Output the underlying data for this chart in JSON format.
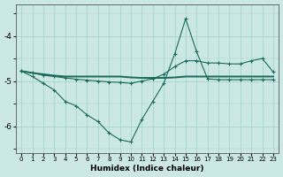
{
  "xlabel": "Humidex (Indice chaleur)",
  "bg_color": "#cce8e4",
  "grid_color": "#b0d8d2",
  "line_color": "#1a6b5a",
  "xlim": [
    -0.5,
    23.5
  ],
  "ylim": [
    -6.6,
    -3.3
  ],
  "yticks": [
    -6,
    -5,
    -4
  ],
  "xticks": [
    0,
    1,
    2,
    3,
    4,
    5,
    6,
    7,
    8,
    9,
    10,
    11,
    12,
    13,
    14,
    15,
    16,
    17,
    18,
    19,
    20,
    21,
    22,
    23
  ],
  "line1_x": [
    0,
    1,
    2,
    3,
    4,
    5,
    6,
    7,
    8,
    9,
    10,
    11,
    12,
    13,
    14,
    15,
    16,
    17,
    18,
    19,
    20,
    21,
    22,
    23
  ],
  "line1_y": [
    -4.78,
    -4.82,
    -4.87,
    -4.9,
    -4.93,
    -4.96,
    -4.98,
    -5.0,
    -5.02,
    -5.03,
    -5.05,
    -5.0,
    -4.95,
    -4.85,
    -4.68,
    -4.55,
    -4.55,
    -4.6,
    -4.6,
    -4.62,
    -4.62,
    -4.55,
    -4.5,
    -4.8
  ],
  "line2_x": [
    0,
    1,
    2,
    3,
    4,
    5,
    6,
    7,
    8,
    9,
    10,
    11,
    12,
    13,
    14,
    15,
    16,
    17,
    18,
    19,
    20,
    21,
    22,
    23
  ],
  "line2_y": [
    -4.78,
    -4.9,
    -5.05,
    -5.2,
    -5.45,
    -5.55,
    -5.75,
    -5.9,
    -6.15,
    -6.3,
    -6.35,
    -5.85,
    -5.45,
    -5.05,
    -4.4,
    -3.62,
    -4.35,
    -4.95,
    -4.97,
    -4.97,
    -4.97,
    -4.97,
    -4.97,
    -4.97
  ],
  "line3_x": [
    0,
    1,
    2,
    3,
    4,
    5,
    6,
    7,
    8,
    9,
    10,
    11,
    12,
    13,
    14,
    15,
    16,
    17,
    18,
    19,
    20,
    21,
    22,
    23
  ],
  "line3_y": [
    -4.78,
    -4.82,
    -4.85,
    -4.88,
    -4.9,
    -4.9,
    -4.9,
    -4.9,
    -4.9,
    -4.9,
    -4.92,
    -4.93,
    -4.93,
    -4.93,
    -4.92,
    -4.9,
    -4.9,
    -4.9,
    -4.9,
    -4.9,
    -4.9,
    -4.9,
    -4.9,
    -4.9
  ]
}
